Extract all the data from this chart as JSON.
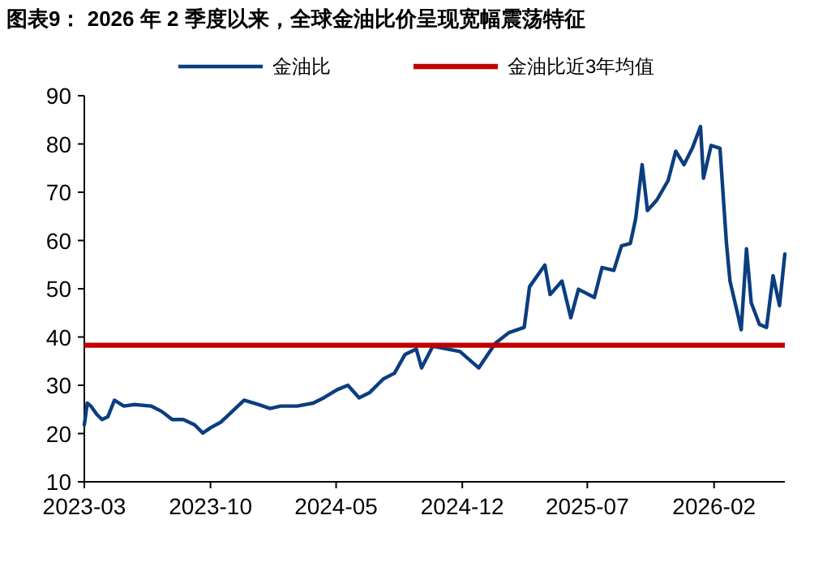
{
  "chart_data": {
    "type": "line",
    "title": "图表9： 2026 年 2 季度以来，全球金油比价呈现宽幅震荡特征",
    "x": [
      "2023-03-01",
      "2023-03-06",
      "2023-03-12",
      "2023-03-22",
      "2023-03-31",
      "2023-04-10",
      "2023-04-21",
      "2023-05-07",
      "2023-05-25",
      "2023-06-22",
      "2023-07-10",
      "2023-07-28",
      "2023-08-16",
      "2023-09-04",
      "2023-09-18",
      "2023-10-01",
      "2023-10-19",
      "2023-11-07",
      "2023-11-27",
      "2023-12-22",
      "2024-01-10",
      "2024-01-28",
      "2024-02-25",
      "2024-03-23",
      "2024-04-10",
      "2024-05-03",
      "2024-05-21",
      "2024-06-09",
      "2024-06-27",
      "2024-07-20",
      "2024-08-08",
      "2024-08-26",
      "2024-09-14",
      "2024-09-23",
      "2024-10-12",
      "2024-11-27",
      "2024-12-29",
      "2025-01-26",
      "2025-02-18",
      "2025-03-16",
      "2025-03-25",
      "2025-04-20",
      "2025-04-29",
      "2025-05-19",
      "2025-06-03",
      "2025-06-16",
      "2025-07-13",
      "2025-07-26",
      "2025-08-15",
      "2025-08-28",
      "2025-09-12",
      "2025-09-21",
      "2025-10-02",
      "2025-10-11",
      "2025-10-27",
      "2025-11-15",
      "2025-11-28",
      "2025-12-12",
      "2025-12-26",
      "2026-01-09",
      "2026-01-14",
      "2026-01-27",
      "2026-02-11",
      "2026-02-22",
      "2026-02-28",
      "2026-03-13",
      "2026-03-19",
      "2026-03-28",
      "2026-04-05",
      "2026-04-19",
      "2026-05-01",
      "2026-05-12",
      "2026-05-23",
      "2026-06-01"
    ],
    "series": [
      {
        "name": "金油比",
        "color": "#0b3e80",
        "values": [
          21.8,
          26.3,
          25.7,
          24.0,
          22.9,
          23.5,
          26.9,
          25.7,
          26.0,
          25.7,
          24.6,
          22.9,
          22.9,
          21.8,
          20.1,
          21.2,
          22.4,
          24.6,
          26.9,
          26.0,
          25.2,
          25.7,
          25.7,
          26.3,
          27.4,
          29.1,
          30.0,
          27.4,
          28.5,
          31.3,
          32.5,
          36.4,
          37.5,
          33.6,
          38.1,
          37.0,
          33.6,
          38.7,
          40.9,
          42.0,
          50.4,
          54.9,
          48.8,
          51.6,
          44.0,
          49.9,
          48.2,
          54.4,
          53.8,
          58.9,
          59.4,
          64.5,
          75.7,
          66.2,
          68.4,
          72.4,
          78.5,
          75.7,
          79.1,
          83.6,
          72.9,
          79.7,
          79.1,
          59.4,
          51.6,
          44.8,
          41.5,
          58.3,
          47.1,
          42.6,
          42.0,
          52.7,
          46.5,
          57.2
        ]
      }
    ],
    "ref_lines": [
      {
        "axis": "y",
        "value": 38.3,
        "label": "金油比近3年均值",
        "color": "#c00000"
      }
    ],
    "xlim": [
      "2023-03-01",
      "2026-06-01"
    ],
    "xticks": [
      "2023-03",
      "2023-10",
      "2024-05",
      "2024-12",
      "2025-07",
      "2026-02"
    ],
    "ylim": [
      10,
      90
    ],
    "yticks": [
      10,
      20,
      30,
      40,
      50,
      60,
      70,
      80,
      90
    ],
    "legend": "top",
    "grid": false
  }
}
